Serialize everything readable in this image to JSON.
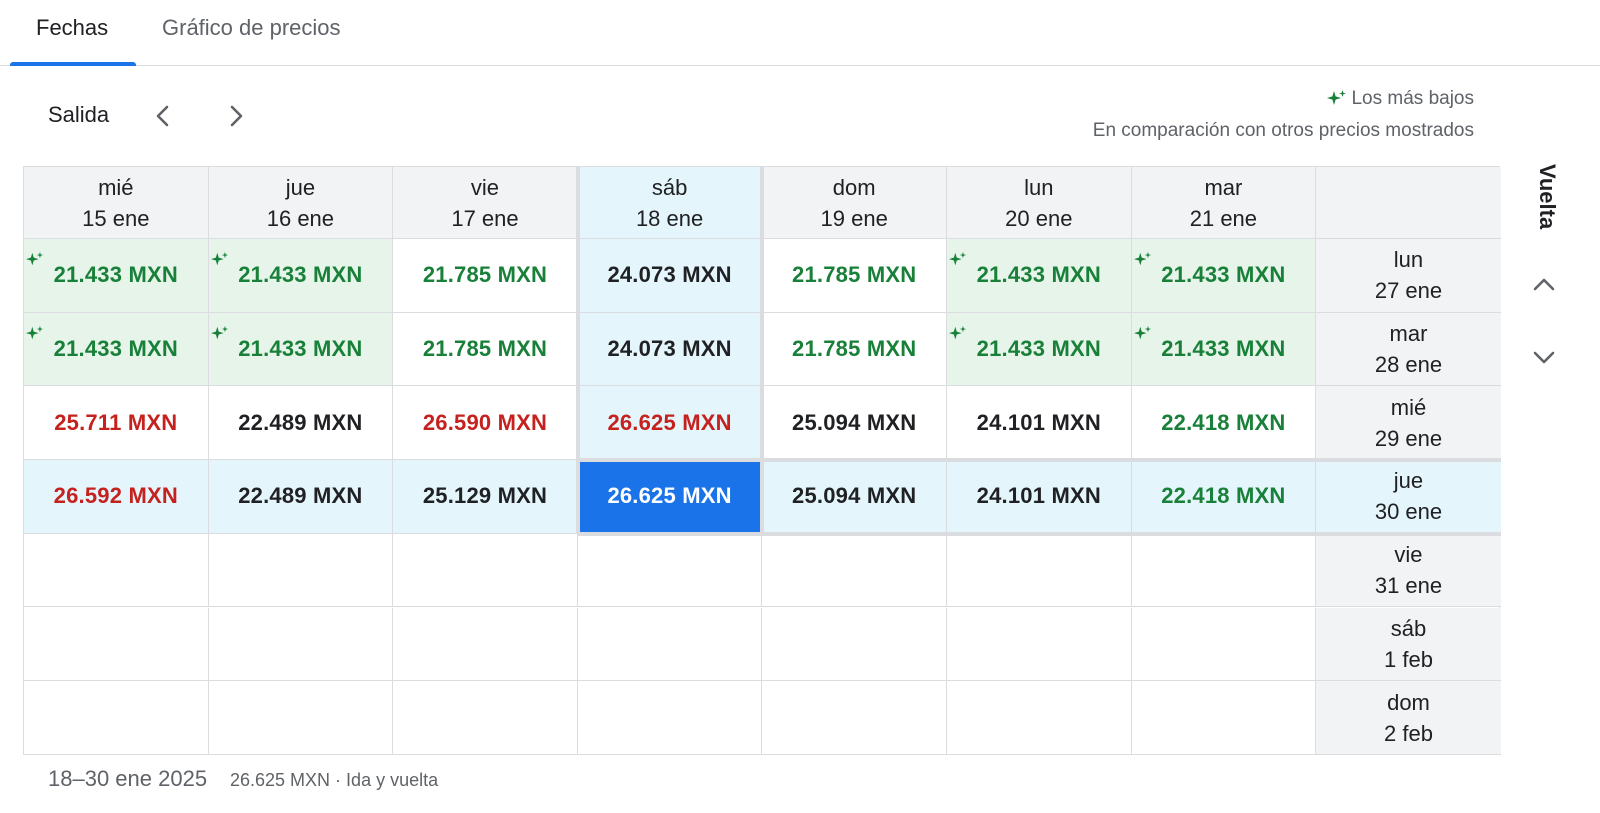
{
  "tabs": [
    {
      "label": "Fechas",
      "active": true
    },
    {
      "label": "Gráfico de precios",
      "active": false
    }
  ],
  "departure_label": "Salida",
  "return_label": "Vuelta",
  "legend": {
    "title": "Los más bajos",
    "subtitle": "En comparación con otros precios mostrados"
  },
  "columns": [
    {
      "day": "mié",
      "date": "15 ene"
    },
    {
      "day": "jue",
      "date": "16 ene"
    },
    {
      "day": "vie",
      "date": "17 ene"
    },
    {
      "day": "sáb",
      "date": "18 ene"
    },
    {
      "day": "dom",
      "date": "19 ene"
    },
    {
      "day": "lun",
      "date": "20 ene"
    },
    {
      "day": "mar",
      "date": "21 ene"
    }
  ],
  "rows": [
    {
      "day": "lun",
      "date": "27 ene",
      "cells": [
        {
          "price": "21.433 MXN",
          "tone": "green",
          "lowest": true
        },
        {
          "price": "21.433 MXN",
          "tone": "green",
          "lowest": true
        },
        {
          "price": "21.785 MXN",
          "tone": "green",
          "lowest": false
        },
        {
          "price": "24.073 MXN",
          "tone": "black",
          "lowest": false
        },
        {
          "price": "21.785 MXN",
          "tone": "green",
          "lowest": false
        },
        {
          "price": "21.433 MXN",
          "tone": "green",
          "lowest": true
        },
        {
          "price": "21.433 MXN",
          "tone": "green",
          "lowest": true
        }
      ]
    },
    {
      "day": "mar",
      "date": "28 ene",
      "cells": [
        {
          "price": "21.433 MXN",
          "tone": "green",
          "lowest": true
        },
        {
          "price": "21.433 MXN",
          "tone": "green",
          "lowest": true
        },
        {
          "price": "21.785 MXN",
          "tone": "green",
          "lowest": false
        },
        {
          "price": "24.073 MXN",
          "tone": "black",
          "lowest": false
        },
        {
          "price": "21.785 MXN",
          "tone": "green",
          "lowest": false
        },
        {
          "price": "21.433 MXN",
          "tone": "green",
          "lowest": true
        },
        {
          "price": "21.433 MXN",
          "tone": "green",
          "lowest": true
        }
      ]
    },
    {
      "day": "mié",
      "date": "29 ene",
      "cells": [
        {
          "price": "25.711 MXN",
          "tone": "red",
          "lowest": false
        },
        {
          "price": "22.489 MXN",
          "tone": "black",
          "lowest": false
        },
        {
          "price": "26.590 MXN",
          "tone": "red",
          "lowest": false
        },
        {
          "price": "26.625 MXN",
          "tone": "red",
          "lowest": false
        },
        {
          "price": "25.094 MXN",
          "tone": "black",
          "lowest": false
        },
        {
          "price": "24.101 MXN",
          "tone": "black",
          "lowest": false
        },
        {
          "price": "22.418 MXN",
          "tone": "green",
          "lowest": false
        }
      ]
    },
    {
      "day": "jue",
      "date": "30 ene",
      "cells": [
        {
          "price": "26.592 MXN",
          "tone": "red",
          "lowest": false
        },
        {
          "price": "22.489 MXN",
          "tone": "black",
          "lowest": false
        },
        {
          "price": "25.129 MXN",
          "tone": "black",
          "lowest": false
        },
        {
          "price": "26.625 MXN",
          "tone": "selected",
          "lowest": false
        },
        {
          "price": "25.094 MXN",
          "tone": "black",
          "lowest": false
        },
        {
          "price": "24.101 MXN",
          "tone": "black",
          "lowest": false
        },
        {
          "price": "22.418 MXN",
          "tone": "green",
          "lowest": false
        }
      ]
    },
    {
      "day": "vie",
      "date": "31 ene",
      "cells": [
        {
          "price": "",
          "tone": "empty",
          "lowest": false
        },
        {
          "price": "",
          "tone": "empty",
          "lowest": false
        },
        {
          "price": "",
          "tone": "empty",
          "lowest": false
        },
        {
          "price": "",
          "tone": "empty",
          "lowest": false
        },
        {
          "price": "",
          "tone": "empty",
          "lowest": false
        },
        {
          "price": "",
          "tone": "empty",
          "lowest": false
        },
        {
          "price": "",
          "tone": "empty",
          "lowest": false
        }
      ]
    },
    {
      "day": "sáb",
      "date": "1 feb",
      "cells": [
        {
          "price": "",
          "tone": "empty",
          "lowest": false
        },
        {
          "price": "",
          "tone": "empty",
          "lowest": false
        },
        {
          "price": "",
          "tone": "empty",
          "lowest": false
        },
        {
          "price": "",
          "tone": "empty",
          "lowest": false
        },
        {
          "price": "",
          "tone": "empty",
          "lowest": false
        },
        {
          "price": "",
          "tone": "empty",
          "lowest": false
        },
        {
          "price": "",
          "tone": "empty",
          "lowest": false
        }
      ]
    },
    {
      "day": "dom",
      "date": "2 feb",
      "cells": [
        {
          "price": "",
          "tone": "empty",
          "lowest": false
        },
        {
          "price": "",
          "tone": "empty",
          "lowest": false
        },
        {
          "price": "",
          "tone": "empty",
          "lowest": false
        },
        {
          "price": "",
          "tone": "empty",
          "lowest": false
        },
        {
          "price": "",
          "tone": "empty",
          "lowest": false
        },
        {
          "price": "",
          "tone": "empty",
          "lowest": false
        },
        {
          "price": "",
          "tone": "empty",
          "lowest": false
        }
      ]
    }
  ],
  "selected": {
    "row": 3,
    "col": 3
  },
  "footer": {
    "dates": "18–30 ene 2025",
    "summary": "26.625 MXN · Ida y vuelta"
  },
  "icons": {
    "lowest": "sparkle-icon",
    "prev": "chevron-left-icon",
    "next": "chevron-right-icon",
    "up": "chevron-up-icon",
    "down": "chevron-down-icon"
  },
  "colors": {
    "accent": "#1a73e8",
    "green": "#188038",
    "red": "#c5221f",
    "lowest_bg": "#e6f4ea",
    "selected_axis_bg": "#e4f6fb"
  }
}
